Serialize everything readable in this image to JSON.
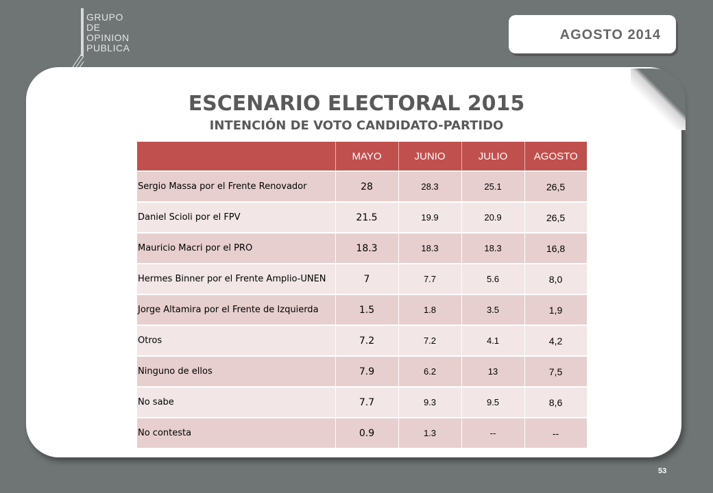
{
  "logo": {
    "lines": [
      "GRUPO",
      "DE",
      "OPINION",
      "PUBLICA"
    ]
  },
  "date_badge": "AGOSTO  2014",
  "title": "ESCENARIO ELECTORAL 2015",
  "subtitle": "INTENCIÓN DE VOTO CANDIDATO-PARTIDO",
  "table": {
    "headers": [
      "",
      "MAYO",
      "JUNIO",
      "JULIO",
      "AGOSTO"
    ],
    "rows": [
      {
        "label": "Sergio Massa por el Frente Renovador",
        "mayo": "28",
        "junio": "28.3",
        "julio": "25.1",
        "agosto": "26,5"
      },
      {
        "label": "Daniel Scioli por el FPV",
        "mayo": "21.5",
        "junio": "19.9",
        "julio": "20.9",
        "agosto": "26,5"
      },
      {
        "label": "Mauricio Macri por el PRO",
        "mayo": "18.3",
        "junio": "18.3",
        "julio": "18.3",
        "agosto": "16,8"
      },
      {
        "label": "Hermes Binner por el Frente Amplio-UNEN",
        "mayo": "7",
        "junio": "7.7",
        "julio": "5.6",
        "agosto": "8,0"
      },
      {
        "label": "Jorge Altamira por el Frente de Izquierda",
        "mayo": "1.5",
        "junio": "1.8",
        "julio": "3.5",
        "agosto": "1,9"
      },
      {
        "label": "Otros",
        "mayo": "7.2",
        "junio": "7.2",
        "julio": "4.1",
        "agosto": "4,2"
      },
      {
        "label": "Ninguno de ellos",
        "mayo": "7.9",
        "junio": "6.2",
        "julio": "13",
        "agosto": "7,5"
      },
      {
        "label": "No sabe",
        "mayo": "7.7",
        "junio": "9.3",
        "julio": "9.5",
        "agosto": "8,6"
      },
      {
        "label": "No contesta",
        "mayo": "0.9",
        "junio": "1.3",
        "julio": "--",
        "agosto": "--"
      }
    ]
  },
  "page_number": "53",
  "colors": {
    "background": "#6f7475",
    "header": "#c0504d",
    "row_odd": "#e6cfce",
    "row_even": "#f2e6e6"
  }
}
